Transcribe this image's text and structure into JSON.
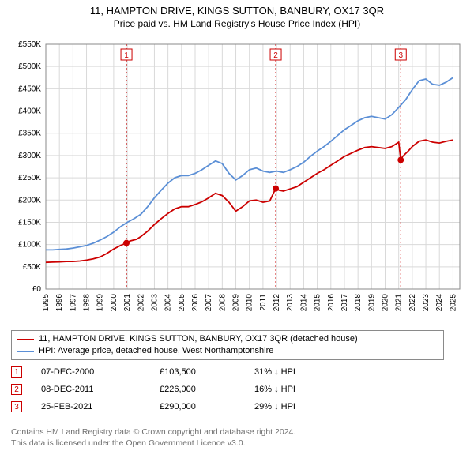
{
  "title1": "11, HAMPTON DRIVE, KINGS SUTTON, BANBURY, OX17 3QR",
  "title2": "Price paid vs. HM Land Registry's House Price Index (HPI)",
  "chart": {
    "type": "line",
    "background_color": "#ffffff",
    "grid_color": "#d9d9d9",
    "axis_color": "#8a8a8a",
    "x_years": [
      1995,
      1996,
      1997,
      1998,
      1999,
      2000,
      2001,
      2002,
      2003,
      2004,
      2005,
      2006,
      2007,
      2008,
      2009,
      2010,
      2011,
      2012,
      2013,
      2014,
      2015,
      2016,
      2017,
      2018,
      2019,
      2020,
      2021,
      2022,
      2023,
      2024,
      2025
    ],
    "xlim": [
      1995,
      2025.5
    ],
    "ylim": [
      0,
      550000
    ],
    "ytick_step": 50000,
    "ytick_labels": [
      "£0",
      "£50K",
      "£100K",
      "£150K",
      "£200K",
      "£250K",
      "£300K",
      "£350K",
      "£400K",
      "£450K",
      "£500K",
      "£550K"
    ],
    "axis_fontsize": 10,
    "series": [
      {
        "name": "property",
        "color": "#cc0000",
        "width": 1.8,
        "label": "11, HAMPTON DRIVE, KINGS SUTTON, BANBURY, OX17 3QR (detached house)",
        "points": [
          [
            1995.0,
            60000
          ],
          [
            1995.5,
            60500
          ],
          [
            1996.0,
            61000
          ],
          [
            1996.5,
            62000
          ],
          [
            1997.0,
            62000
          ],
          [
            1997.5,
            63000
          ],
          [
            1998.0,
            65000
          ],
          [
            1998.5,
            68000
          ],
          [
            1999.0,
            72000
          ],
          [
            1999.5,
            80000
          ],
          [
            2000.0,
            90000
          ],
          [
            2000.5,
            98000
          ],
          [
            2000.94,
            103500
          ],
          [
            2001.2,
            108000
          ],
          [
            2001.7,
            112000
          ],
          [
            2002.0,
            118000
          ],
          [
            2002.5,
            130000
          ],
          [
            2003.0,
            145000
          ],
          [
            2003.5,
            158000
          ],
          [
            2004.0,
            170000
          ],
          [
            2004.5,
            180000
          ],
          [
            2005.0,
            185000
          ],
          [
            2005.5,
            185000
          ],
          [
            2006.0,
            190000
          ],
          [
            2006.5,
            196000
          ],
          [
            2007.0,
            205000
          ],
          [
            2007.5,
            215000
          ],
          [
            2008.0,
            210000
          ],
          [
            2008.5,
            195000
          ],
          [
            2009.0,
            175000
          ],
          [
            2009.5,
            185000
          ],
          [
            2010.0,
            198000
          ],
          [
            2010.5,
            200000
          ],
          [
            2011.0,
            195000
          ],
          [
            2011.5,
            198000
          ],
          [
            2011.94,
            226000
          ],
          [
            2012.2,
            222000
          ],
          [
            2012.5,
            220000
          ],
          [
            2013.0,
            225000
          ],
          [
            2013.5,
            230000
          ],
          [
            2014.0,
            240000
          ],
          [
            2014.5,
            250000
          ],
          [
            2015.0,
            260000
          ],
          [
            2015.5,
            268000
          ],
          [
            2016.0,
            278000
          ],
          [
            2016.5,
            288000
          ],
          [
            2017.0,
            298000
          ],
          [
            2017.5,
            305000
          ],
          [
            2018.0,
            312000
          ],
          [
            2018.5,
            318000
          ],
          [
            2019.0,
            320000
          ],
          [
            2019.5,
            318000
          ],
          [
            2020.0,
            316000
          ],
          [
            2020.5,
            320000
          ],
          [
            2021.0,
            330000
          ],
          [
            2021.15,
            290000
          ],
          [
            2021.3,
            298000
          ],
          [
            2021.7,
            310000
          ],
          [
            2022.0,
            320000
          ],
          [
            2022.5,
            332000
          ],
          [
            2023.0,
            335000
          ],
          [
            2023.5,
            330000
          ],
          [
            2024.0,
            328000
          ],
          [
            2024.5,
            332000
          ],
          [
            2025.0,
            335000
          ]
        ]
      },
      {
        "name": "hpi",
        "color": "#5b8fd6",
        "width": 1.8,
        "label": "HPI: Average price, detached house, West Northamptonshire",
        "points": [
          [
            1995.0,
            88000
          ],
          [
            1995.5,
            88000
          ],
          [
            1996.0,
            89000
          ],
          [
            1996.5,
            90000
          ],
          [
            1997.0,
            92000
          ],
          [
            1997.5,
            95000
          ],
          [
            1998.0,
            98000
          ],
          [
            1998.5,
            103000
          ],
          [
            1999.0,
            110000
          ],
          [
            1999.5,
            118000
          ],
          [
            2000.0,
            128000
          ],
          [
            2000.5,
            140000
          ],
          [
            2001.0,
            150000
          ],
          [
            2001.5,
            158000
          ],
          [
            2002.0,
            168000
          ],
          [
            2002.5,
            185000
          ],
          [
            2003.0,
            205000
          ],
          [
            2003.5,
            222000
          ],
          [
            2004.0,
            238000
          ],
          [
            2004.5,
            250000
          ],
          [
            2005.0,
            255000
          ],
          [
            2005.5,
            255000
          ],
          [
            2006.0,
            260000
          ],
          [
            2006.5,
            268000
          ],
          [
            2007.0,
            278000
          ],
          [
            2007.5,
            288000
          ],
          [
            2008.0,
            282000
          ],
          [
            2008.5,
            260000
          ],
          [
            2009.0,
            245000
          ],
          [
            2009.5,
            255000
          ],
          [
            2010.0,
            268000
          ],
          [
            2010.5,
            272000
          ],
          [
            2011.0,
            265000
          ],
          [
            2011.5,
            262000
          ],
          [
            2012.0,
            265000
          ],
          [
            2012.5,
            262000
          ],
          [
            2013.0,
            268000
          ],
          [
            2013.5,
            275000
          ],
          [
            2014.0,
            285000
          ],
          [
            2014.5,
            298000
          ],
          [
            2015.0,
            310000
          ],
          [
            2015.5,
            320000
          ],
          [
            2016.0,
            332000
          ],
          [
            2016.5,
            345000
          ],
          [
            2017.0,
            358000
          ],
          [
            2017.5,
            368000
          ],
          [
            2018.0,
            378000
          ],
          [
            2018.5,
            385000
          ],
          [
            2019.0,
            388000
          ],
          [
            2019.5,
            385000
          ],
          [
            2020.0,
            382000
          ],
          [
            2020.5,
            392000
          ],
          [
            2021.0,
            408000
          ],
          [
            2021.5,
            425000
          ],
          [
            2022.0,
            448000
          ],
          [
            2022.5,
            468000
          ],
          [
            2023.0,
            472000
          ],
          [
            2023.5,
            460000
          ],
          [
            2024.0,
            458000
          ],
          [
            2024.5,
            465000
          ],
          [
            2025.0,
            475000
          ]
        ]
      }
    ],
    "sale_markers": [
      {
        "num": "1",
        "x": 2000.94,
        "y": 103500,
        "color": "#cc0000"
      },
      {
        "num": "2",
        "x": 2011.94,
        "y": 226000,
        "color": "#cc0000"
      },
      {
        "num": "3",
        "x": 2021.15,
        "y": 290000,
        "color": "#cc0000"
      }
    ],
    "marker_box_fontsize": 10
  },
  "legend": {
    "border_color": "#8a8a8a",
    "fontsize": 11,
    "items": [
      {
        "color": "#cc0000",
        "label": "11, HAMPTON DRIVE, KINGS SUTTON, BANBURY, OX17 3QR (detached house)"
      },
      {
        "color": "#5b8fd6",
        "label": "HPI: Average price, detached house, West Northamptonshire"
      }
    ]
  },
  "events": {
    "rows": [
      {
        "num": "1",
        "color": "#cc0000",
        "date": "07-DEC-2000",
        "price": "£103,500",
        "diff": "31% ↓ HPI"
      },
      {
        "num": "2",
        "color": "#cc0000",
        "date": "08-DEC-2011",
        "price": "£226,000",
        "diff": "16% ↓ HPI"
      },
      {
        "num": "3",
        "color": "#cc0000",
        "date": "25-FEB-2021",
        "price": "£290,000",
        "diff": "29% ↓ HPI"
      }
    ],
    "fontsize": 11
  },
  "footer": {
    "line1": "Contains HM Land Registry data © Crown copyright and database right 2024.",
    "line2": "This data is licensed under the Open Government Licence v3.0.",
    "color": "#707070",
    "fontsize": 10.5
  }
}
